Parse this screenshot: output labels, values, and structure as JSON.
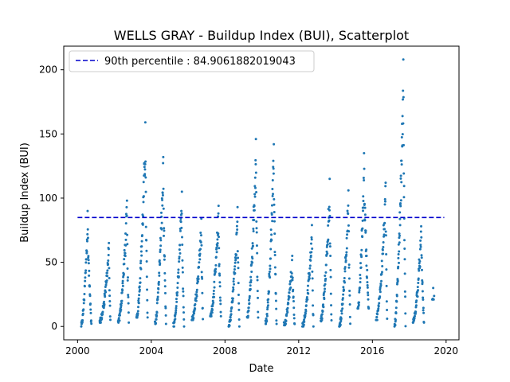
{
  "chart_data": {
    "type": "scatter",
    "title": "WELLS GRAY - Buildup Index (BUI), Scatterplot",
    "xlabel": "Date",
    "ylabel": "Buildup Index (BUI)",
    "xlim": [
      1999.25,
      2020.7
    ],
    "ylim": [
      -10.4,
      218.4
    ],
    "x_ticks": [
      2000,
      2004,
      2008,
      2012,
      2016,
      2020
    ],
    "y_ticks": [
      0,
      50,
      100,
      150,
      200
    ],
    "grid": false,
    "legend": {
      "position": "top-left",
      "entries": [
        "90th percentile : 84.9061882019043"
      ]
    },
    "reference_line": {
      "label": "90th percentile : 84.9061882019043",
      "y": 84.9061882019043,
      "x_range": [
        2000.0,
        2019.9
      ],
      "color": "#0000cc",
      "style": "dashed"
    },
    "series_color": "#1f77b4",
    "seasons": [
      {
        "year": 2000,
        "start": 0.2,
        "peak": 0.55,
        "pmax": 90,
        "end": 0.75,
        "min": 0,
        "n": 55
      },
      {
        "year": 2001,
        "start": 0.2,
        "peak": 0.7,
        "pmax": 65,
        "end": 0.78,
        "min": 3,
        "n": 60
      },
      {
        "year": 2002,
        "start": 0.2,
        "peak": 0.68,
        "pmax": 98,
        "end": 0.78,
        "min": 3,
        "n": 60
      },
      {
        "year": 2003,
        "start": 0.2,
        "peak": 0.68,
        "pmax": 159,
        "end": 0.8,
        "min": 7,
        "n": 65
      },
      {
        "year": 2004,
        "start": 0.2,
        "peak": 0.65,
        "pmax": 132,
        "end": 0.8,
        "min": 2,
        "n": 65
      },
      {
        "year": 2005,
        "start": 0.2,
        "peak": 0.66,
        "pmax": 105,
        "end": 0.78,
        "min": 0,
        "n": 60
      },
      {
        "year": 2006,
        "start": 0.2,
        "peak": 0.72,
        "pmax": 84,
        "end": 0.8,
        "min": 5,
        "n": 60
      },
      {
        "year": 2007,
        "start": 0.2,
        "peak": 0.65,
        "pmax": 94,
        "end": 0.78,
        "min": 8,
        "n": 60
      },
      {
        "year": 2008,
        "start": 0.2,
        "peak": 0.68,
        "pmax": 93,
        "end": 0.78,
        "min": 0,
        "n": 60
      },
      {
        "year": 2009,
        "start": 0.2,
        "peak": 0.68,
        "pmax": 146,
        "end": 0.8,
        "min": 7,
        "n": 65
      },
      {
        "year": 2010,
        "start": 0.2,
        "peak": 0.65,
        "pmax": 142,
        "end": 0.8,
        "min": 2,
        "n": 65
      },
      {
        "year": 2011,
        "start": 0.2,
        "peak": 0.65,
        "pmax": 55,
        "end": 0.78,
        "min": 1,
        "n": 55
      },
      {
        "year": 2012,
        "start": 0.2,
        "peak": 0.72,
        "pmax": 79,
        "end": 0.8,
        "min": 0,
        "n": 60
      },
      {
        "year": 2013,
        "start": 0.2,
        "peak": 0.68,
        "pmax": 115,
        "end": 0.78,
        "min": 4,
        "n": 60
      },
      {
        "year": 2014,
        "start": 0.2,
        "peak": 0.7,
        "pmax": 106,
        "end": 0.8,
        "min": 0,
        "n": 60
      },
      {
        "year": 2015,
        "start": 0.2,
        "peak": 0.55,
        "pmax": 135,
        "end": 0.8,
        "min": 14,
        "n": 65
      },
      {
        "year": 2016,
        "start": 0.2,
        "peak": 0.72,
        "pmax": 112,
        "end": 0.8,
        "min": 5,
        "n": 60
      },
      {
        "year": 2017,
        "start": 0.2,
        "peak": 0.68,
        "pmax": 208,
        "end": 0.8,
        "min": 0,
        "n": 70
      },
      {
        "year": 2018,
        "start": 0.2,
        "peak": 0.65,
        "pmax": 78,
        "end": 0.8,
        "min": 3,
        "n": 60
      },
      {
        "year": 2019,
        "start": 0.25,
        "peak": 0.3,
        "pmax": 30,
        "end": 0.35,
        "min": 21,
        "n": 5
      }
    ]
  }
}
